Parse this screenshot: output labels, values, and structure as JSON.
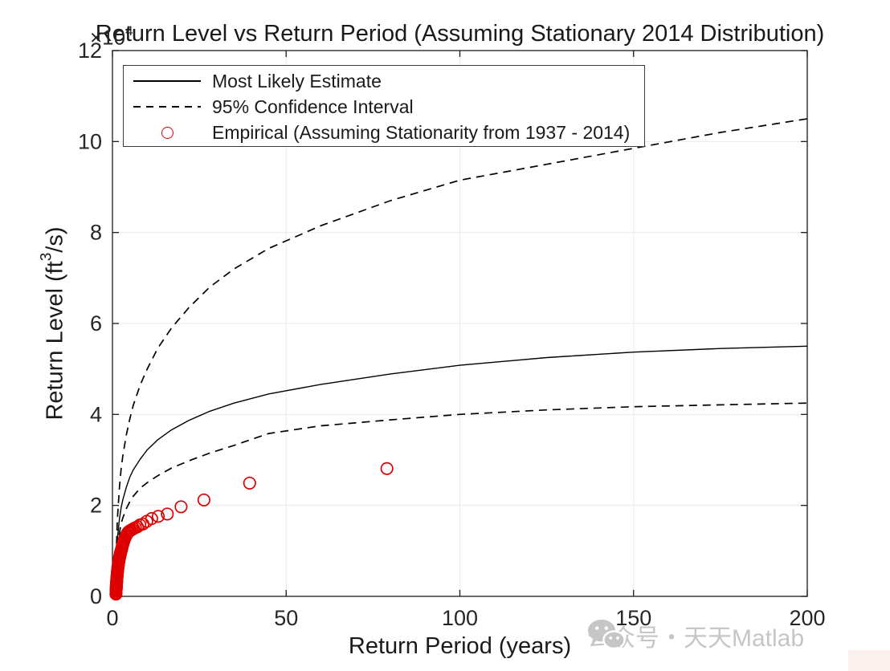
{
  "colors": {
    "axis": "#1a1a1a",
    "grid": "#ebebeb",
    "curve": "#000000",
    "empirical": "#dd0000",
    "watermark": "#c6c6c6",
    "corner_box": "#fcf1ef"
  },
  "exponent_label": {
    "base": "×10",
    "sup": "4"
  },
  "legend": {
    "items": [
      {
        "label": "Most Likely Estimate",
        "style": "solid-line"
      },
      {
        "label": "95% Confidence Interval",
        "style": "dashed-line"
      },
      {
        "label": "Empirical (Assuming Stationarity from 1937 - 2014)",
        "style": "red-circle"
      }
    ]
  },
  "watermark": {
    "text": "公众号・天天Matlab",
    "icon": "wechat-icon"
  },
  "chart_data": {
    "type": "line",
    "title": "Return Level vs Return Period (Assuming Stationary 2014 Distribution)",
    "xlabel": "Return Period (years)",
    "ylabel_parts": {
      "pre": "Return Level (ft",
      "sup": "3",
      "post": "/s)"
    },
    "y_unit_multiplier": "1e4",
    "xlim": [
      0,
      200
    ],
    "ylim": [
      0,
      12
    ],
    "xticks": [
      0,
      50,
      100,
      150,
      200
    ],
    "yticks": [
      0,
      2,
      4,
      6,
      8,
      10,
      12
    ],
    "grid": true,
    "legend_position": "top-left",
    "series": [
      {
        "name": "Most Likely Estimate",
        "type": "line",
        "style": "solid",
        "color": "#000000",
        "points": [
          [
            1.01,
            0.2
          ],
          [
            1.05,
            0.5
          ],
          [
            1.1,
            0.7
          ],
          [
            1.2,
            0.95
          ],
          [
            1.35,
            1.18
          ],
          [
            1.5,
            1.33
          ],
          [
            2,
            1.7
          ],
          [
            2.5,
            1.95
          ],
          [
            3,
            2.13
          ],
          [
            4,
            2.4
          ],
          [
            5,
            2.62
          ],
          [
            6,
            2.78
          ],
          [
            8,
            3.02
          ],
          [
            10,
            3.22
          ],
          [
            13,
            3.44
          ],
          [
            17,
            3.66
          ],
          [
            22,
            3.87
          ],
          [
            28,
            4.07
          ],
          [
            35,
            4.25
          ],
          [
            45,
            4.45
          ],
          [
            60,
            4.66
          ],
          [
            80,
            4.89
          ],
          [
            100,
            5.08
          ],
          [
            125,
            5.25
          ],
          [
            150,
            5.37
          ],
          [
            175,
            5.45
          ],
          [
            200,
            5.5
          ]
        ]
      },
      {
        "name": "95% Confidence Interval (upper)",
        "type": "line",
        "style": "dashed",
        "color": "#000000",
        "points": [
          [
            1.01,
            0.25
          ],
          [
            1.05,
            0.6
          ],
          [
            1.1,
            0.85
          ],
          [
            1.2,
            1.2
          ],
          [
            1.35,
            1.55
          ],
          [
            1.5,
            1.8
          ],
          [
            2,
            2.4
          ],
          [
            2.5,
            2.8
          ],
          [
            3,
            3.1
          ],
          [
            4,
            3.55
          ],
          [
            5,
            3.9
          ],
          [
            6,
            4.2
          ],
          [
            8,
            4.65
          ],
          [
            10,
            5.0
          ],
          [
            13,
            5.45
          ],
          [
            17,
            5.9
          ],
          [
            22,
            6.35
          ],
          [
            28,
            6.8
          ],
          [
            35,
            7.2
          ],
          [
            45,
            7.65
          ],
          [
            60,
            8.15
          ],
          [
            80,
            8.7
          ],
          [
            100,
            9.15
          ],
          [
            125,
            9.5
          ],
          [
            150,
            9.85
          ],
          [
            175,
            10.2
          ],
          [
            200,
            10.5
          ]
        ]
      },
      {
        "name": "95% Confidence Interval (lower)",
        "type": "line",
        "style": "dashed",
        "color": "#000000",
        "points": [
          [
            1.01,
            0.15
          ],
          [
            1.05,
            0.4
          ],
          [
            1.1,
            0.6
          ],
          [
            1.2,
            0.8
          ],
          [
            1.35,
            1.0
          ],
          [
            1.5,
            1.12
          ],
          [
            2,
            1.4
          ],
          [
            2.5,
            1.6
          ],
          [
            3,
            1.73
          ],
          [
            4,
            1.93
          ],
          [
            5,
            2.08
          ],
          [
            6,
            2.2
          ],
          [
            8,
            2.38
          ],
          [
            10,
            2.5
          ],
          [
            13,
            2.65
          ],
          [
            17,
            2.82
          ],
          [
            22,
            2.98
          ],
          [
            28,
            3.15
          ],
          [
            35,
            3.32
          ],
          [
            45,
            3.58
          ],
          [
            60,
            3.75
          ],
          [
            80,
            3.88
          ],
          [
            100,
            4.0
          ],
          [
            125,
            4.1
          ],
          [
            150,
            4.17
          ],
          [
            175,
            4.21
          ],
          [
            200,
            4.25
          ]
        ]
      },
      {
        "name": "Empirical (Assuming Stationarity from 1937 - 2014)",
        "type": "scatter",
        "marker": "circle",
        "color": "#dd0000",
        "points": [
          [
            79,
            2.81
          ],
          [
            39.5,
            2.49
          ],
          [
            26.33,
            2.12
          ],
          [
            19.75,
            1.97
          ],
          [
            15.8,
            1.81
          ],
          [
            13.17,
            1.76
          ],
          [
            11.29,
            1.71
          ],
          [
            9.88,
            1.65
          ],
          [
            8.78,
            1.59
          ],
          [
            7.9,
            1.57
          ],
          [
            7.18,
            1.53
          ],
          [
            6.58,
            1.51
          ],
          [
            6.08,
            1.49
          ],
          [
            5.64,
            1.47
          ],
          [
            5.27,
            1.45
          ],
          [
            4.94,
            1.44
          ],
          [
            4.65,
            1.42
          ],
          [
            4.39,
            1.4
          ],
          [
            4.16,
            1.37
          ],
          [
            3.95,
            1.34
          ],
          [
            3.76,
            1.31
          ],
          [
            3.59,
            1.28
          ],
          [
            3.43,
            1.25
          ],
          [
            3.29,
            1.22
          ],
          [
            3.16,
            1.19
          ],
          [
            3.04,
            1.16
          ],
          [
            2.93,
            1.13
          ],
          [
            2.82,
            1.1
          ],
          [
            2.72,
            1.07
          ],
          [
            2.63,
            1.04
          ],
          [
            2.55,
            1.01
          ],
          [
            2.47,
            0.99
          ],
          [
            2.39,
            0.97
          ],
          [
            2.32,
            0.95
          ],
          [
            2.26,
            0.93
          ],
          [
            2.19,
            0.91
          ],
          [
            2.14,
            0.89
          ],
          [
            2.08,
            0.87
          ],
          [
            2.03,
            0.85
          ],
          [
            1.98,
            0.83
          ],
          [
            1.93,
            0.81
          ],
          [
            1.88,
            0.79
          ],
          [
            1.84,
            0.77
          ],
          [
            1.8,
            0.75
          ],
          [
            1.76,
            0.73
          ],
          [
            1.72,
            0.71
          ],
          [
            1.68,
            0.69
          ],
          [
            1.65,
            0.67
          ],
          [
            1.61,
            0.65
          ],
          [
            1.58,
            0.63
          ],
          [
            1.55,
            0.61
          ],
          [
            1.52,
            0.59
          ],
          [
            1.49,
            0.57
          ],
          [
            1.46,
            0.55
          ],
          [
            1.44,
            0.53
          ],
          [
            1.41,
            0.51
          ],
          [
            1.39,
            0.49
          ],
          [
            1.36,
            0.47
          ],
          [
            1.34,
            0.45
          ],
          [
            1.32,
            0.43
          ],
          [
            1.3,
            0.41
          ],
          [
            1.27,
            0.39
          ],
          [
            1.25,
            0.37
          ],
          [
            1.23,
            0.35
          ],
          [
            1.22,
            0.33
          ],
          [
            1.2,
            0.31
          ],
          [
            1.18,
            0.29
          ],
          [
            1.16,
            0.27
          ],
          [
            1.14,
            0.25
          ],
          [
            1.13,
            0.23
          ],
          [
            1.11,
            0.21
          ],
          [
            1.1,
            0.19
          ],
          [
            1.08,
            0.17
          ],
          [
            1.07,
            0.15
          ],
          [
            1.05,
            0.13
          ],
          [
            1.04,
            0.11
          ],
          [
            1.03,
            0.08
          ],
          [
            1.01,
            0.05
          ]
        ]
      }
    ]
  }
}
